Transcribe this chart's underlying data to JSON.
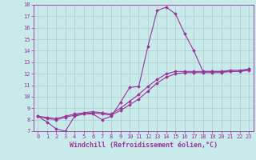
{
  "background_color": "#c8eaea",
  "grid_color": "#aacccc",
  "line_color": "#993399",
  "xlim": [
    -0.5,
    23.5
  ],
  "ylim": [
    7,
    18
  ],
  "xlabel": "Windchill (Refroidissement éolien,°C)",
  "xlabel_fontsize": 6.0,
  "xticks": [
    0,
    1,
    2,
    3,
    4,
    5,
    6,
    7,
    8,
    9,
    10,
    11,
    12,
    13,
    14,
    15,
    16,
    17,
    18,
    19,
    20,
    21,
    22,
    23
  ],
  "yticks": [
    7,
    8,
    9,
    10,
    11,
    12,
    13,
    14,
    15,
    16,
    17,
    18
  ],
  "series": [
    [
      8.3,
      7.8,
      7.2,
      7.0,
      8.3,
      8.5,
      8.5,
      8.0,
      8.3,
      9.5,
      10.8,
      10.9,
      14.4,
      17.5,
      17.8,
      17.2,
      15.5,
      14.0,
      12.2,
      12.2,
      12.2,
      12.2,
      12.2,
      12.4
    ],
    [
      8.3,
      8.1,
      8.0,
      8.2,
      8.4,
      8.5,
      8.6,
      8.5,
      8.4,
      8.8,
      9.3,
      9.8,
      10.5,
      11.2,
      11.7,
      12.0,
      12.1,
      12.1,
      12.1,
      12.1,
      12.1,
      12.2,
      12.2,
      12.3
    ],
    [
      8.3,
      8.2,
      8.1,
      8.3,
      8.5,
      8.6,
      8.7,
      8.6,
      8.5,
      9.0,
      9.6,
      10.2,
      10.9,
      11.5,
      12.0,
      12.2,
      12.2,
      12.2,
      12.2,
      12.2,
      12.2,
      12.3,
      12.3,
      12.4
    ]
  ],
  "marker": "D",
  "marker_size": 1.8,
  "linewidth": 0.8,
  "tick_fontsize": 5.0,
  "figsize": [
    3.2,
    2.0
  ],
  "dpi": 100
}
